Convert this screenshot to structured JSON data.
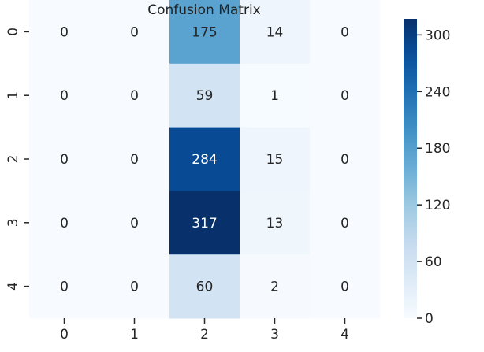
{
  "chart_data": {
    "type": "heatmap",
    "title": "Confusion Matrix",
    "xlabel": "",
    "ylabel": "",
    "x_categories": [
      "0",
      "1",
      "2",
      "3",
      "4"
    ],
    "y_categories": [
      "0",
      "1",
      "2",
      "3",
      "4"
    ],
    "values": [
      [
        0,
        0,
        175,
        14,
        0
      ],
      [
        0,
        0,
        59,
        1,
        0
      ],
      [
        0,
        0,
        284,
        15,
        0
      ],
      [
        0,
        0,
        317,
        13,
        0
      ],
      [
        0,
        0,
        60,
        2,
        0
      ]
    ],
    "colormap": "Blues",
    "vmin": 0,
    "vmax": 317,
    "colorbar_ticks": [
      "0",
      "60",
      "120",
      "180",
      "240",
      "300"
    ],
    "colorbar_tick_values": [
      0,
      60,
      120,
      180,
      240,
      300
    ],
    "grid": false,
    "colorbar_placement": "right"
  }
}
